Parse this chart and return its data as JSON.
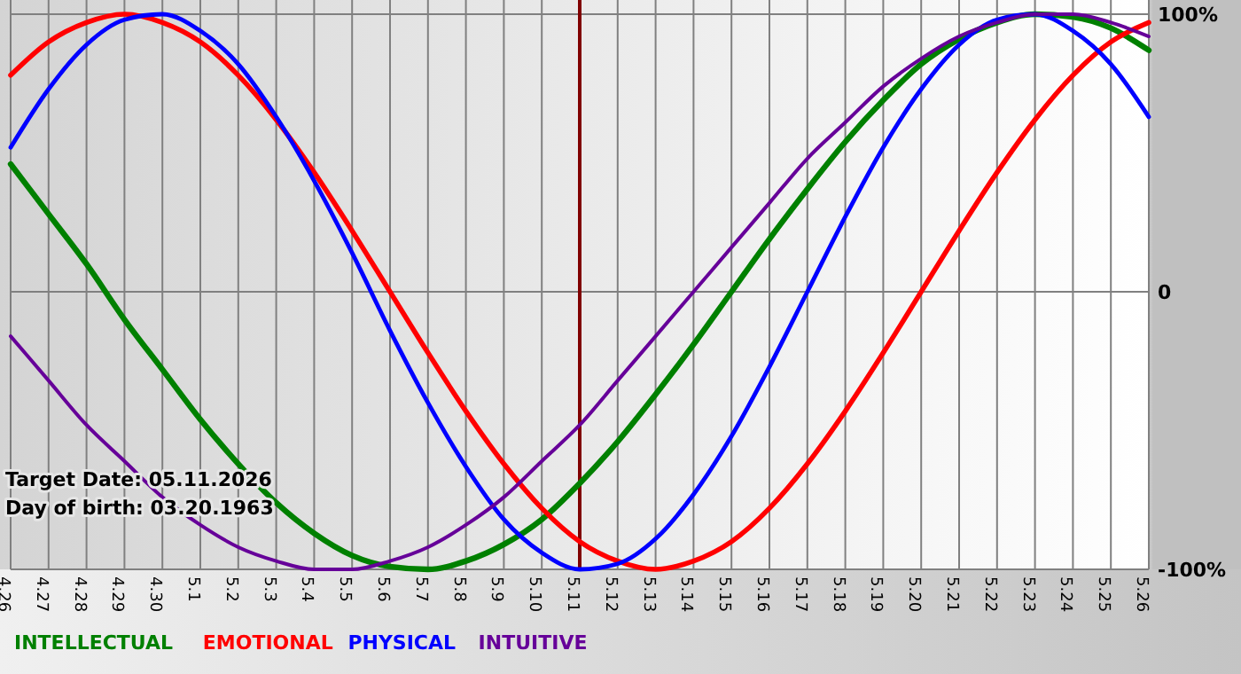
{
  "chart_data": {
    "type": "line",
    "categories": [
      "4.26",
      "4.27",
      "4.28",
      "4.29",
      "4.30",
      "5.1",
      "5.2",
      "5.3",
      "5.4",
      "5.5",
      "5.6",
      "5.7",
      "5.8",
      "5.9",
      "5.10",
      "5.11",
      "5.12",
      "5.13",
      "5.14",
      "5.15",
      "5.16",
      "5.17",
      "5.18",
      "5.19",
      "5.20",
      "5.21",
      "5.22",
      "5.23",
      "5.24",
      "5.25",
      "5.26"
    ],
    "series": [
      {
        "name": "INTELLECTUAL",
        "color": "#008000",
        "values": [
          46,
          28,
          10,
          -10,
          -28,
          -46,
          -62,
          -76,
          -87,
          -95,
          -99,
          -100,
          -97,
          -91,
          -82,
          -69,
          -54,
          -37,
          -19,
          0,
          19,
          37,
          54,
          69,
          82,
          91,
          97,
          100,
          99,
          95,
          87
        ]
      },
      {
        "name": "EMOTIONAL",
        "color": "#ff0000",
        "values": [
          78,
          90,
          97,
          100,
          97,
          90,
          78,
          62,
          43,
          22,
          0,
          -22,
          -43,
          -62,
          -78,
          -90,
          -97,
          -100,
          -97,
          -90,
          -78,
          -62,
          -43,
          -22,
          0,
          22,
          43,
          62,
          78,
          90,
          97
        ]
      },
      {
        "name": "PHYSICAL",
        "color": "#0000ff",
        "values": [
          52,
          73,
          89,
          98,
          100,
          94,
          82,
          63,
          40,
          14,
          -14,
          -40,
          -63,
          -82,
          -94,
          -100,
          -98,
          -89,
          -73,
          -52,
          -27,
          0,
          27,
          52,
          73,
          89,
          98,
          100,
          94,
          82,
          63
        ]
      },
      {
        "name": "INTUITIVE",
        "color": "#660099",
        "values": [
          -16,
          -32,
          -48,
          -61,
          -74,
          -84,
          -92,
          -97,
          -100,
          -100,
          -97,
          -92,
          -84,
          -74,
          -61,
          -48,
          -32,
          -16,
          0,
          16,
          32,
          48,
          61,
          74,
          84,
          92,
          97,
          100,
          100,
          97,
          92
        ]
      }
    ],
    "ylim": [
      -100,
      100
    ],
    "yticks": [
      {
        "value": 100,
        "label": "100%"
      },
      0,
      {
        "value": -100,
        "label": "-100%"
      }
    ],
    "grid": true,
    "legend": "bottom left",
    "marker": "none",
    "line_style": "solid",
    "ref_lines": [
      {
        "axis": "x",
        "value": "5.11",
        "color": "#800000"
      }
    ],
    "annotations": [
      "Target Date: 05.11.2026",
      "Day of birth: 03.20.1963"
    ]
  }
}
